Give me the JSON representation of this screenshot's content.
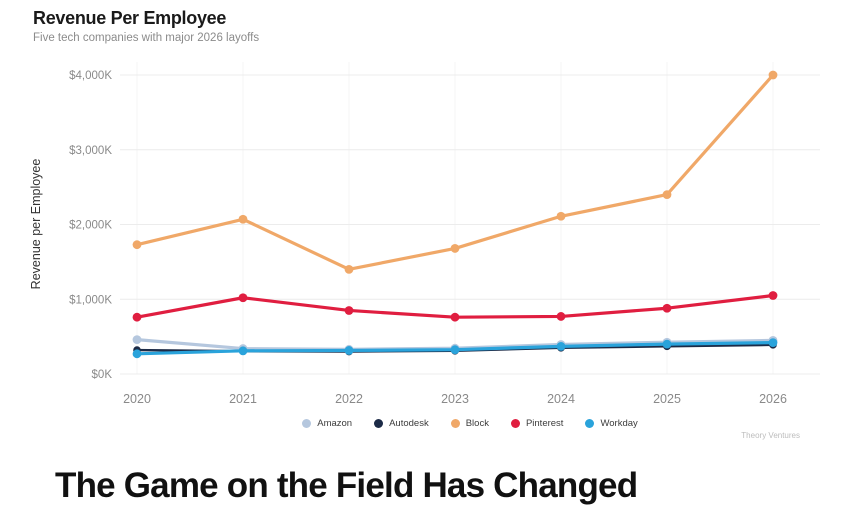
{
  "chart": {
    "title": "Revenue Per Employee",
    "subtitle": "Five tech companies with major 2026 layoffs",
    "y_axis_label": "Revenue per Employee",
    "attribution": "Theory Ventures"
  },
  "heading": "The Game on the Field Has Changed",
  "chart_data": {
    "type": "line",
    "title": "Revenue Per Employee",
    "subtitle": "Five tech companies with major 2026 layoffs",
    "x": [
      2020,
      2021,
      2022,
      2023,
      2024,
      2025,
      2026
    ],
    "series": [
      {
        "name": "Amazon",
        "color": "#b5c7de",
        "values": [
          460,
          340,
          330,
          345,
          395,
          425,
          450
        ]
      },
      {
        "name": "Autodesk",
        "color": "#1c2b47",
        "values": [
          320,
          305,
          300,
          310,
          350,
          370,
          390
        ]
      },
      {
        "name": "Block",
        "color": "#f0a868",
        "values": [
          1730,
          2070,
          1400,
          1680,
          2110,
          2400,
          4000
        ]
      },
      {
        "name": "Pinterest",
        "color": "#e01e40",
        "values": [
          760,
          1020,
          850,
          760,
          770,
          880,
          1050
        ]
      },
      {
        "name": "Workday",
        "color": "#2aa3db",
        "values": [
          270,
          310,
          315,
          325,
          370,
          400,
          420
        ]
      }
    ],
    "xlabel": "",
    "ylabel": "Revenue per Employee",
    "ylim": [
      0,
      4000
    ],
    "y_tick_step": 1000,
    "y_ticks": [
      "$0K",
      "$1,000K",
      "$2,000K",
      "$3,000K",
      "$4,000K"
    ],
    "grid": true,
    "legend_position": "bottom",
    "attribution": "Theory Ventures"
  }
}
